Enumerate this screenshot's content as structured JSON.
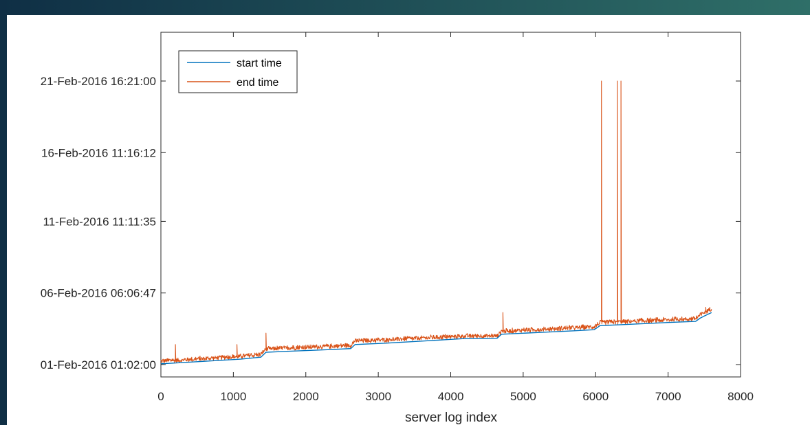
{
  "colors": {
    "frame_gradient_start": "#0f2f45",
    "frame_gradient_end": "#2f6f68",
    "start_series": "#0072BD",
    "end_series": "#D95319",
    "axis": "#262626"
  },
  "chart_data": {
    "type": "line",
    "title": "",
    "xlabel": "server log index",
    "ylabel": "",
    "xlim": [
      0,
      8000
    ],
    "ylim_labels": [
      "01-Feb-2016 01:02:00",
      "21-Feb-2016 16:21:00"
    ],
    "x_ticks": [
      0,
      1000,
      2000,
      3000,
      4000,
      5000,
      6000,
      7000,
      8000
    ],
    "x_tick_labels": [
      "0",
      "1000",
      "2000",
      "3000",
      "4000",
      "5000",
      "6000",
      "7000",
      "8000"
    ],
    "y_tick_labels": [
      "21-Feb-2016 16:21:00",
      "16-Feb-2016 11:16:12",
      "11-Feb-2016 11:11:35",
      "06-Feb-2016 06:06:47",
      "01-Feb-2016 01:02:00"
    ],
    "grid": false,
    "box": true,
    "legend_position": "top-left",
    "series": [
      {
        "name": "start time",
        "color": "#0072BD",
        "x": [
          0,
          300,
          700,
          1100,
          1380,
          1450,
          1800,
          2300,
          2620,
          2680,
          3100,
          3600,
          4000,
          4200,
          4640,
          4700,
          5200,
          5700,
          5980,
          6060,
          6500,
          7000,
          7380,
          7440,
          7500,
          7600
        ],
        "y": [
          "01-Feb-2016 02:30",
          "01-Feb-2016 04:30",
          "01-Feb-2016 07:30",
          "01-Feb-2016 10:30",
          "01-Feb-2016 14:00",
          "01-Feb-2016 22:30",
          "02-Feb-2016 00:30",
          "02-Feb-2016 03:00",
          "02-Feb-2016 05:00",
          "02-Feb-2016 12:00",
          "02-Feb-2016 14:30",
          "02-Feb-2016 18:00",
          "02-Feb-2016 21:00",
          "02-Feb-2016 22:30",
          "02-Feb-2016 23:00",
          "03-Feb-2016 06:00",
          "03-Feb-2016 09:00",
          "03-Feb-2016 12:00",
          "03-Feb-2016 14:00",
          "03-Feb-2016 21:00",
          "03-Feb-2016 23:30",
          "04-Feb-2016 02:30",
          "04-Feb-2016 04:30",
          "04-Feb-2016 10:00",
          "04-Feb-2016 14:00",
          "04-Feb-2016 20:00"
        ]
      },
      {
        "name": "end time",
        "color": "#D95319",
        "x": [
          0,
          300,
          700,
          1100,
          1380,
          1450,
          1800,
          2300,
          2620,
          2680,
          3100,
          3600,
          4000,
          4200,
          4640,
          4700,
          5200,
          5700,
          5980,
          6060,
          6500,
          7000,
          7380,
          7440,
          7500,
          7600
        ],
        "y": [
          "01-Feb-2016 05:00",
          "01-Feb-2016 07:00",
          "01-Feb-2016 10:00",
          "01-Feb-2016 13:00",
          "01-Feb-2016 16:30",
          "02-Feb-2016 02:00",
          "02-Feb-2016 04:00",
          "02-Feb-2016 06:30",
          "02-Feb-2016 08:30",
          "02-Feb-2016 16:00",
          "02-Feb-2016 18:00",
          "02-Feb-2016 21:00",
          "02-Feb-2016 23:30",
          "03-Feb-2016 00:30",
          "03-Feb-2016 01:00",
          "03-Feb-2016 09:00",
          "03-Feb-2016 12:00",
          "03-Feb-2016 15:00",
          "03-Feb-2016 17:00",
          "04-Feb-2016 00:00",
          "04-Feb-2016 02:30",
          "04-Feb-2016 05:00",
          "04-Feb-2016 07:00",
          "04-Feb-2016 13:00",
          "04-Feb-2016 17:30",
          "05-Feb-2016 01:00"
        ],
        "spikes": [
          {
            "x": 200,
            "y": "02-Feb-2016 12:00"
          },
          {
            "x": 1050,
            "y": "02-Feb-2016 12:00"
          },
          {
            "x": 1450,
            "y": "03-Feb-2016 08:00"
          },
          {
            "x": 1820,
            "y": "02-Feb-2016 10:00"
          },
          {
            "x": 4720,
            "y": "04-Feb-2016 20:00"
          },
          {
            "x": 6080,
            "y": "21-Feb-2016 16:21"
          },
          {
            "x": 6300,
            "y": "21-Feb-2016 16:21"
          },
          {
            "x": 6350,
            "y": "21-Feb-2016 16:21"
          },
          {
            "x": 7520,
            "y": "05-Feb-2016 05:00"
          }
        ]
      }
    ]
  }
}
